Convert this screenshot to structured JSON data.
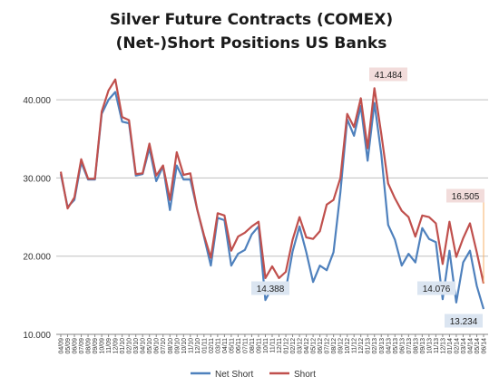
{
  "chart_data": {
    "type": "line",
    "title": "Silver Future Contracts (COMEX)",
    "subtitle": "(Net-)Short Positions US Banks",
    "xlabel": "",
    "ylabel": "",
    "ylim": [
      10,
      45
    ],
    "grid": true,
    "legend": "bottom",
    "y_ticks": [
      "10.000",
      "20.000",
      "30.000",
      "40.000"
    ],
    "x_ticks": [
      "04/09",
      "05/09",
      "06/09",
      "07/09",
      "08/09",
      "09/09",
      "10/09",
      "11/09",
      "12/09",
      "01/10",
      "02/10",
      "03/10",
      "04/10",
      "05/10",
      "06/10",
      "07/10",
      "08/10",
      "09/10",
      "10/10",
      "11/10",
      "12/10",
      "01/11",
      "02/11",
      "03/11",
      "04/11",
      "05/11",
      "06/11",
      "07/11",
      "08/11",
      "09/11",
      "10/11",
      "11/11",
      "12/11",
      "01/12",
      "02/12",
      "03/12",
      "04/12",
      "05/12",
      "06/12",
      "07/12",
      "08/12",
      "09/12",
      "10/12",
      "11/12",
      "12/12",
      "01/13",
      "02/13",
      "03/13",
      "04/13",
      "05/13",
      "06/13",
      "07/13",
      "08/13",
      "09/13",
      "10/13",
      "11/13",
      "12/13",
      "01/14",
      "02/14",
      "03/14",
      "04/14",
      "05/14",
      "06/14"
    ],
    "series": [
      {
        "name": "Net Short",
        "color": "#4f81bd",
        "values": [
          30.5,
          26.3,
          27.2,
          32.0,
          29.8,
          29.8,
          38.2,
          40.0,
          41.0,
          37.2,
          37.0,
          30.3,
          30.5,
          33.8,
          29.6,
          31.5,
          25.9,
          31.6,
          29.8,
          29.8,
          26.0,
          22.5,
          18.8,
          24.9,
          24.6,
          18.8,
          20.3,
          20.8,
          22.8,
          23.8,
          14.388,
          16.0,
          15.6,
          15.7,
          20.6,
          23.8,
          20.5,
          16.7,
          18.8,
          18.2,
          20.5,
          28.2,
          37.5,
          35.4,
          39.2,
          32.2,
          39.6,
          33.0,
          24.0,
          22.1,
          18.8,
          20.3,
          19.2,
          23.6,
          22.2,
          21.8,
          14.5,
          20.7,
          14.076,
          19.2,
          20.7,
          16.2,
          13.234
        ]
      },
      {
        "name": "Short",
        "color": "#c0504d",
        "values": [
          30.8,
          26.1,
          27.5,
          32.4,
          29.9,
          29.9,
          38.5,
          41.2,
          42.6,
          37.8,
          37.4,
          30.5,
          30.6,
          34.4,
          30.3,
          31.6,
          27.2,
          33.3,
          30.4,
          30.6,
          26.0,
          22.7,
          19.8,
          25.5,
          25.2,
          20.7,
          22.5,
          23.0,
          23.8,
          24.4,
          17.2,
          18.7,
          17.2,
          18.0,
          22.1,
          25.0,
          22.4,
          22.2,
          23.2,
          26.6,
          27.2,
          30.0,
          38.2,
          36.5,
          40.2,
          33.8,
          41.484,
          35.6,
          29.3,
          27.4,
          25.8,
          25.0,
          22.5,
          25.2,
          25.0,
          24.2,
          19.0,
          24.4,
          19.9,
          22.3,
          24.2,
          20.5,
          16.505
        ]
      }
    ],
    "annotations": [
      {
        "label": "14.388",
        "series": 0,
        "index": 30
      },
      {
        "label": "41.484",
        "series": 1,
        "index": 46
      },
      {
        "label": "14.076",
        "series": 0,
        "index": 58
      },
      {
        "label": "13.234",
        "series": 0,
        "index": 62
      },
      {
        "label": "16.505",
        "series": 1,
        "index": 62
      }
    ]
  }
}
